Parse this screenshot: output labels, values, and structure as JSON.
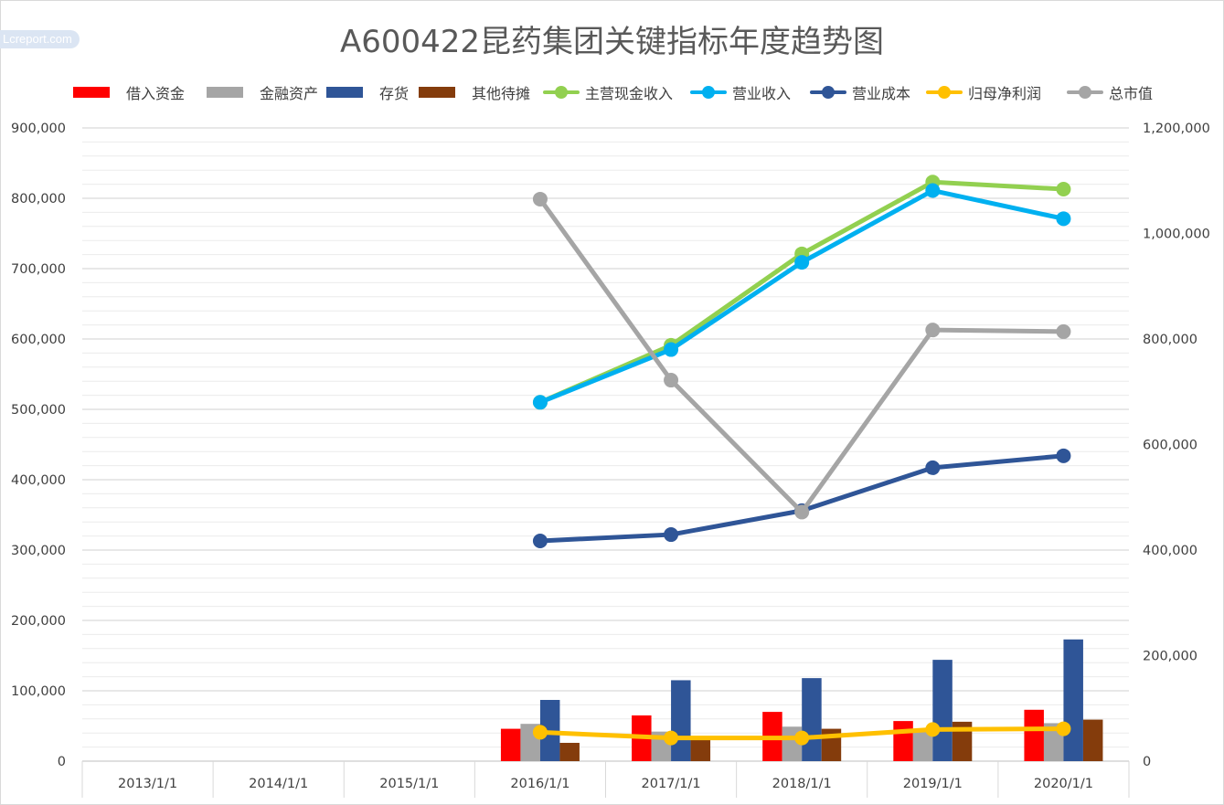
{
  "watermark": "Lcreport.com",
  "chart_data": {
    "type": "bar+line",
    "title": "A600422昆药集团关键指标年度趋势图",
    "categories": [
      "2013/1/1",
      "2014/1/1",
      "2015/1/1",
      "2016/1/1",
      "2017/1/1",
      "2018/1/1",
      "2019/1/1",
      "2020/1/1"
    ],
    "y_left": {
      "min": 0,
      "max": 900000,
      "major_step": 100000,
      "minor_step": 20000,
      "tick_labels": [
        "0",
        "100,000",
        "200,000",
        "300,000",
        "400,000",
        "500,000",
        "600,000",
        "700,000",
        "800,000",
        "900,000"
      ]
    },
    "y_right": {
      "min": 0,
      "max": 1200000,
      "major_step": 200000,
      "tick_labels": [
        "0",
        "200,000",
        "400,000",
        "600,000",
        "800,000",
        "1,000,000",
        "1,200,000"
      ]
    },
    "grid": true,
    "legend_position": "top",
    "bar_series": [
      {
        "name": "借入资金",
        "color": "#ff0000",
        "axis": "left",
        "values": [
          null,
          null,
          null,
          46000,
          65000,
          70000,
          57000,
          73000
        ]
      },
      {
        "name": "金融资产",
        "color": "#a5a5a5",
        "axis": "left",
        "values": [
          null,
          null,
          null,
          53000,
          42000,
          49000,
          44000,
          54000
        ]
      },
      {
        "name": "存货",
        "color": "#2f5597",
        "axis": "left",
        "values": [
          null,
          null,
          null,
          87000,
          115000,
          118000,
          144000,
          173000
        ]
      },
      {
        "name": "其他待摊",
        "color": "#843c0c",
        "axis": "left",
        "values": [
          null,
          null,
          null,
          26000,
          33000,
          46000,
          56000,
          59000
        ]
      }
    ],
    "line_series": [
      {
        "name": "主营现金收入",
        "color": "#92d050",
        "axis": "left",
        "values": [
          null,
          null,
          null,
          510000,
          591000,
          721000,
          823000,
          813000
        ]
      },
      {
        "name": "营业收入",
        "color": "#00b0f0",
        "axis": "left",
        "values": [
          null,
          null,
          null,
          510000,
          585000,
          709000,
          811000,
          771000
        ]
      },
      {
        "name": "营业成本",
        "color": "#2f5597",
        "axis": "left",
        "values": [
          null,
          null,
          null,
          313000,
          322000,
          356000,
          417000,
          434000
        ]
      },
      {
        "name": "归母净利润",
        "color": "#ffc000",
        "axis": "left",
        "values": [
          null,
          null,
          null,
          41000,
          33000,
          33000,
          45000,
          46000
        ]
      },
      {
        "name": "总市值",
        "color": "#a5a5a5",
        "axis": "right",
        "values": [
          null,
          null,
          null,
          1065000,
          722000,
          472000,
          817000,
          814000
        ]
      }
    ]
  }
}
